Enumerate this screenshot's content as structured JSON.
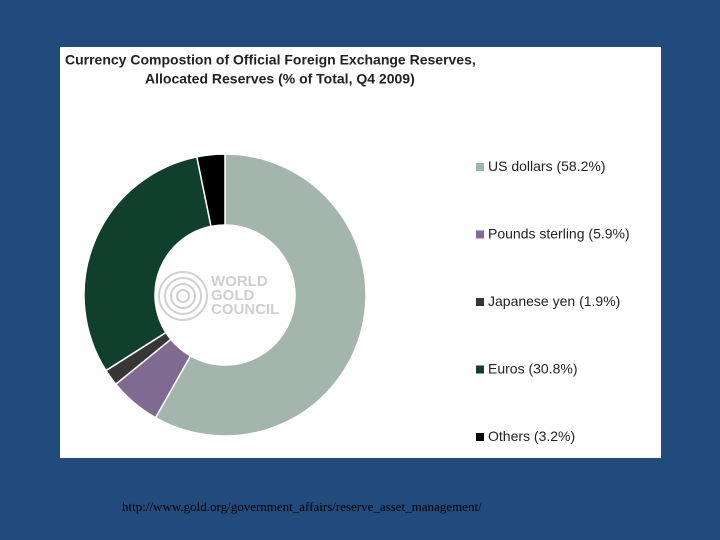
{
  "chart_data": {
    "type": "donut",
    "title": "Currency Compostion of Official Foreign Exchange Reserves,",
    "subtitle": "Allocated Reserves (% of Total, Q4 2009)",
    "categories": [
      "US dollars",
      "Pounds sterling",
      "Japanese yen",
      "Euros",
      "Others"
    ],
    "values": [
      58.2,
      5.9,
      1.9,
      30.8,
      3.2
    ],
    "value_labels": [
      "(58.2%)",
      "(5.9%)",
      "(1.9%)",
      "(30.8%)",
      "(3.2%)"
    ],
    "colors": [
      "#a3b5ac",
      "#7f6a91",
      "#363636",
      "#103f2e",
      "#000000"
    ],
    "legend": "right",
    "watermark": [
      "WORLD",
      "GOLD",
      "COUNCIL"
    ]
  },
  "footer": "http://www.gold.org/government_affairs/reserve_asset_management/"
}
